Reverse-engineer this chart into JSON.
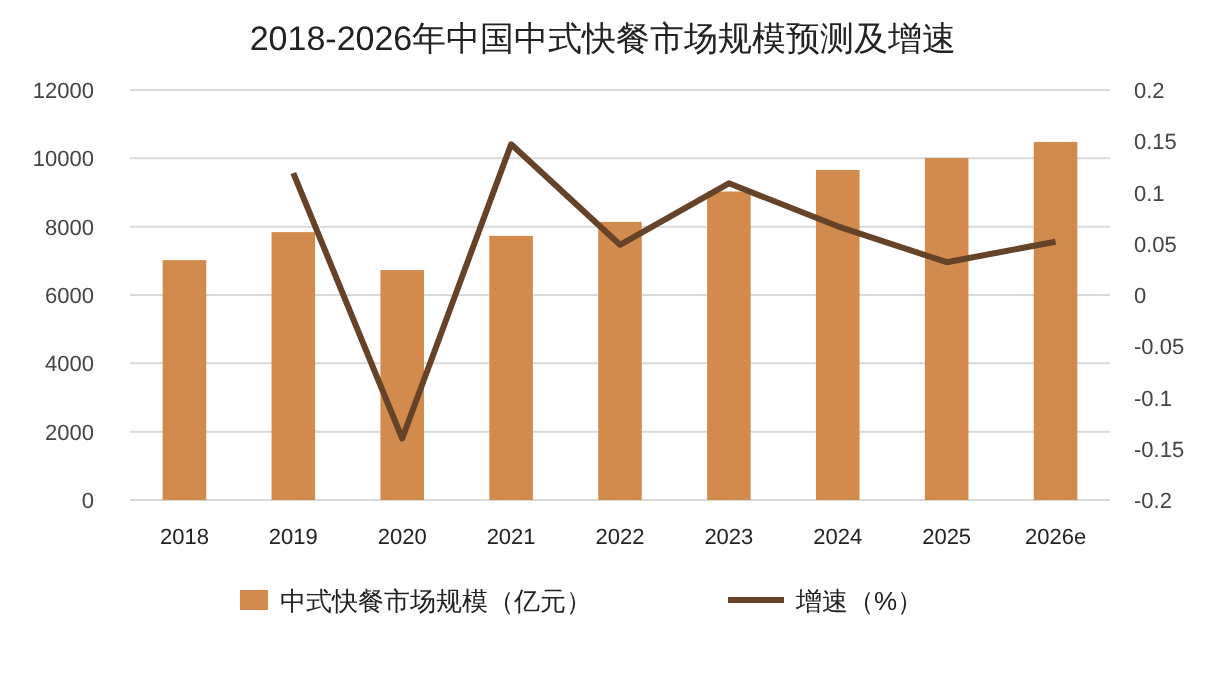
{
  "chart_data": {
    "type": "bar",
    "title": "2018-2026年中国中式快餐市场规模预测及增速",
    "categories": [
      "2018",
      "2019",
      "2020",
      "2021",
      "2022",
      "2023",
      "2024",
      "2025",
      "2026e"
    ],
    "series": [
      {
        "name": "中式快餐市场规模（亿元）",
        "color": "#d38b4d",
        "values": [
          7020,
          7840,
          6730,
          7730,
          8140,
          9030,
          9660,
          10010,
          10480
        ]
      },
      {
        "name": "增速（%）",
        "type": "line",
        "axis": "y2",
        "color": "#654228",
        "values": [
          null,
          0.119,
          -0.14,
          0.147,
          0.049,
          0.109,
          0.067,
          0.032,
          0.052
        ]
      }
    ],
    "ylim": [
      0,
      12000
    ],
    "yticks": [
      0,
      2000,
      4000,
      6000,
      8000,
      10000,
      12000
    ],
    "y2lim": [
      -0.2,
      0.2
    ],
    "y2ticks": [
      -0.2,
      -0.15,
      -0.1,
      -0.05,
      0,
      0.05,
      0.1,
      0.15,
      0.2
    ],
    "grid": "y",
    "legend": "bottom",
    "marker": "none"
  }
}
